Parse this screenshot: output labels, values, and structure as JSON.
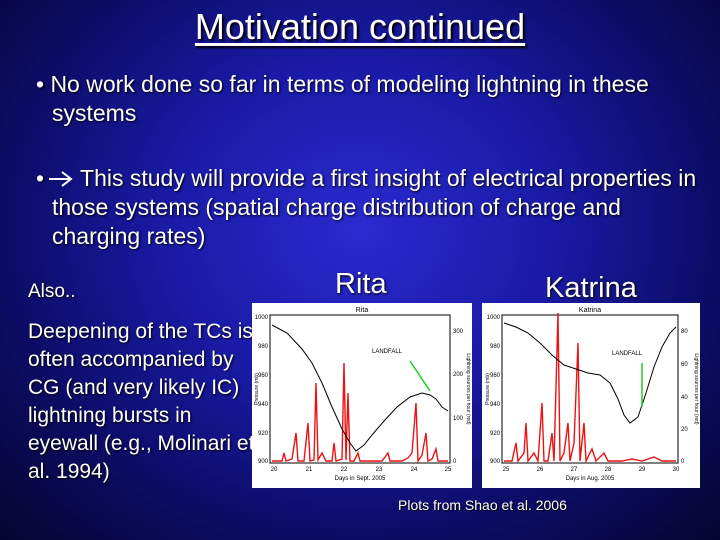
{
  "title": "Motivation continued",
  "bullets": [
    "• No work done so far in terms of modeling lightning in these systems",
    "• This study will provide a first insight of electrical properties in those systems (spatial charge distribution of charge and charging rates)"
  ],
  "bullet2_prefix": "•",
  "bullet2_text": " This study will provide a first insight of electrical properties in those systems (spatial charge distribution of charge and charging rates)",
  "also_label": "Also..",
  "side_text": {
    "part1": "Deepening of the TCs is often accompanied by CG (and very likely IC) ",
    "highlight": "lightning bursts in",
    "part2": " eyewall (e.g., Molinari et al. 1994)"
  },
  "plots": {
    "rita": {
      "label": "Rita",
      "inner_title": "Rita",
      "annotation": "LANDFALL",
      "left_axis_label": "Pressure (mb)",
      "right_axis_label": "Lightning sources per hour (red)",
      "x_axis_label": "Days in Sept. 2005",
      "y_left_ticks": [
        "1000",
        "980",
        "960",
        "940",
        "920",
        "900"
      ],
      "y_right_ticks": [
        "300",
        "200",
        "100",
        "0"
      ],
      "x_ticks": [
        "20",
        "21",
        "22",
        "23",
        "24",
        "25"
      ]
    },
    "katrina": {
      "label": "Katrina",
      "inner_title": "Katrina",
      "annotation": "LANDFALL",
      "left_axis_label": "Pressure (mb)",
      "right_axis_label": "Lightning sources per hour (red)",
      "x_axis_label": "Days in Aug. 2005",
      "y_left_ticks": [
        "1000",
        "980",
        "960",
        "940",
        "920",
        "900"
      ],
      "y_right_ticks": [
        "80",
        "60",
        "40",
        "20",
        "0"
      ],
      "x_ticks": [
        "25",
        "26",
        "27",
        "28",
        "29",
        "30"
      ]
    }
  },
  "credit": "Plots from Shao et al. 2006",
  "colors": {
    "background": "#1a1aa6",
    "lightning": "#e11",
    "pressure": "#000",
    "landfall_arrow": "#2c2"
  }
}
